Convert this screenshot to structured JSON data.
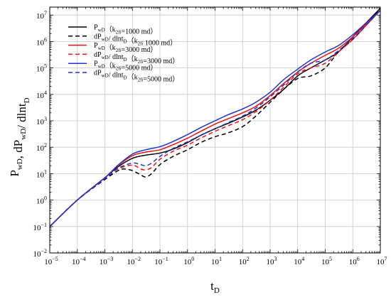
{
  "chart_data": {
    "type": "line",
    "xscale": "log",
    "yscale": "log",
    "xlim": [
      1e-05,
      10000000
    ],
    "ylim": [
      0.01,
      20000000
    ],
    "grid": true,
    "legend_position": "top-left",
    "xlabel": {
      "main": "t",
      "sub": "D"
    },
    "ylabel": {
      "parts": [
        {
          "t": "P",
          "sub": "wD"
        },
        {
          "t": ", dP",
          "sub": "wD"
        },
        {
          "t": "/ dlnt",
          "sub": "D"
        }
      ]
    },
    "xticks": [
      {
        "base": "10",
        "exp": "−5"
      },
      {
        "base": "10",
        "exp": "−4"
      },
      {
        "base": "10",
        "exp": "−3"
      },
      {
        "base": "10",
        "exp": "−2"
      },
      {
        "base": "10",
        "exp": "−1"
      },
      {
        "base": "10",
        "exp": "0"
      },
      {
        "base": "10",
        "exp": "1"
      },
      {
        "base": "10",
        "exp": "2"
      },
      {
        "base": "10",
        "exp": "3"
      },
      {
        "base": "10",
        "exp": "4"
      },
      {
        "base": "10",
        "exp": "5"
      },
      {
        "base": "10",
        "exp": "6"
      },
      {
        "base": "10",
        "exp": "7"
      }
    ],
    "yticks": [
      {
        "base": "10",
        "exp": "−2"
      },
      {
        "base": "10",
        "exp": "−1"
      },
      {
        "base": "10",
        "exp": "0"
      },
      {
        "base": "10",
        "exp": "1"
      },
      {
        "base": "10",
        "exp": "2"
      },
      {
        "base": "10",
        "exp": "3"
      },
      {
        "base": "10",
        "exp": "4"
      },
      {
        "base": "10",
        "exp": "5"
      },
      {
        "base": "10",
        "exp": "6"
      },
      {
        "base": "10",
        "exp": "7"
      }
    ],
    "series": [
      {
        "name_parts": [
          {
            "t": "P",
            "sub": "wD"
          },
          {
            "t": "（k",
            "sub": "2fi"
          },
          {
            "t": "=1000 md）"
          }
        ],
        "color": "#000000",
        "dash": "solid",
        "x": [
          1e-05,
          0.0001,
          0.001,
          0.003,
          0.01,
          0.03,
          0.1,
          0.3,
          1,
          3,
          10,
          30,
          100,
          300,
          1000,
          3000,
          10000,
          30000,
          100000,
          300000,
          1000000,
          3000000,
          10000000
        ],
        "y": [
          0.1,
          1,
          7,
          18,
          38,
          50,
          60,
          85,
          150,
          280,
          500,
          800,
          1400,
          2500,
          6000,
          15000,
          50000,
          100000,
          200000,
          400000,
          1500000,
          5000000,
          18000000
        ]
      },
      {
        "name_parts": [
          {
            "t": "dP",
            "sub": "wD"
          },
          {
            "t": "/ dlnt",
            "sub": "D"
          },
          {
            "t": "（k",
            "sub": "2fi"
          },
          {
            "t": " 1000 md）"
          }
        ],
        "color": "#000000",
        "dash": "dashed",
        "x": [
          1e-05,
          0.0001,
          0.001,
          0.003,
          0.005,
          0.01,
          0.02,
          0.03,
          0.05,
          0.1,
          0.3,
          1,
          3,
          10,
          30,
          100,
          300,
          1000,
          3000,
          10000,
          30000,
          100000,
          300000,
          1000000,
          3000000,
          10000000
        ],
        "y": [
          0.1,
          1,
          6,
          13,
          15,
          13,
          9,
          7.5,
          10,
          22,
          45,
          80,
          150,
          250,
          350,
          600,
          1500,
          5000,
          15000,
          40000,
          50000,
          100000,
          400000,
          1200000,
          4000000,
          18000000
        ]
      },
      {
        "name_parts": [
          {
            "t": "P",
            "sub": "wD"
          },
          {
            "t": "（k",
            "sub": "2fi"
          },
          {
            "t": "=3000 md）"
          }
        ],
        "color": "#ee1111",
        "dash": "solid",
        "x": [
          1e-05,
          0.0001,
          0.001,
          0.003,
          0.01,
          0.03,
          0.1,
          0.3,
          1,
          3,
          10,
          30,
          100,
          300,
          1000,
          3000,
          10000,
          30000,
          100000,
          300000,
          1000000,
          3000000,
          10000000
        ],
        "y": [
          0.1,
          1,
          7,
          20,
          48,
          65,
          80,
          125,
          220,
          400,
          750,
          1200,
          2000,
          3500,
          9000,
          25000,
          70000,
          150000,
          300000,
          550000,
          1500000,
          4500000,
          15000000
        ]
      },
      {
        "name_parts": [
          {
            "t": "dP",
            "sub": "wD"
          },
          {
            "t": "/ dlnt",
            "sub": "D"
          },
          {
            "t": "（k",
            "sub": "2fi"
          },
          {
            "t": "=3000 md）"
          }
        ],
        "color": "#ee1111",
        "dash": "dashed",
        "x": [
          1e-05,
          0.0001,
          0.001,
          0.003,
          0.01,
          0.02,
          0.03,
          0.05,
          0.1,
          0.3,
          1,
          3,
          10,
          30,
          100,
          300,
          1000,
          3000,
          10000,
          30000,
          100000,
          300000,
          1000000,
          3000000,
          10000000
        ],
        "y": [
          0.1,
          1,
          6.5,
          15,
          21,
          15,
          14,
          17,
          35,
          70,
          120,
          220,
          400,
          650,
          1100,
          2200,
          6000,
          18000,
          60000,
          100000,
          150000,
          400000,
          1200000,
          4000000,
          15000000
        ]
      },
      {
        "name_parts": [
          {
            "t": "P",
            "sub": "wD"
          },
          {
            "t": "（k",
            "sub": "2fi"
          },
          {
            "t": "=5000 md）"
          }
        ],
        "color": "#2233cc",
        "dash": "solid",
        "x": [
          1e-05,
          0.0001,
          0.001,
          0.003,
          0.01,
          0.03,
          0.1,
          0.3,
          1,
          3,
          10,
          30,
          100,
          300,
          1000,
          3000,
          10000,
          30000,
          100000,
          300000,
          1000000,
          3000000,
          10000000
        ],
        "y": [
          0.1,
          1,
          7,
          21,
          55,
          80,
          105,
          165,
          300,
          550,
          1000,
          1700,
          2800,
          5000,
          12000,
          35000,
          90000,
          200000,
          400000,
          700000,
          1800000,
          5000000,
          15000000
        ]
      },
      {
        "name_parts": [
          {
            "t": "dP",
            "sub": "wD"
          },
          {
            "t": "/ dlnt",
            "sub": "D"
          },
          {
            "t": "（k",
            "sub": "2fi"
          },
          {
            "t": "=5000 md）"
          }
        ],
        "color": "#2233cc",
        "dash": "dashed",
        "x": [
          1e-05,
          0.0001,
          0.001,
          0.003,
          0.01,
          0.02,
          0.03,
          0.05,
          0.1,
          0.3,
          1,
          3,
          10,
          30,
          100,
          300,
          1000,
          3000,
          10000,
          30000,
          100000,
          300000,
          1000000,
          3000000,
          10000000
        ],
        "y": [
          0.1,
          1,
          6.5,
          16,
          25,
          22,
          20,
          25,
          45,
          90,
          160,
          280,
          500,
          850,
          1500,
          3000,
          8000,
          22000,
          70000,
          150000,
          200000,
          450000,
          1300000,
          4000000,
          15000000
        ]
      }
    ]
  }
}
